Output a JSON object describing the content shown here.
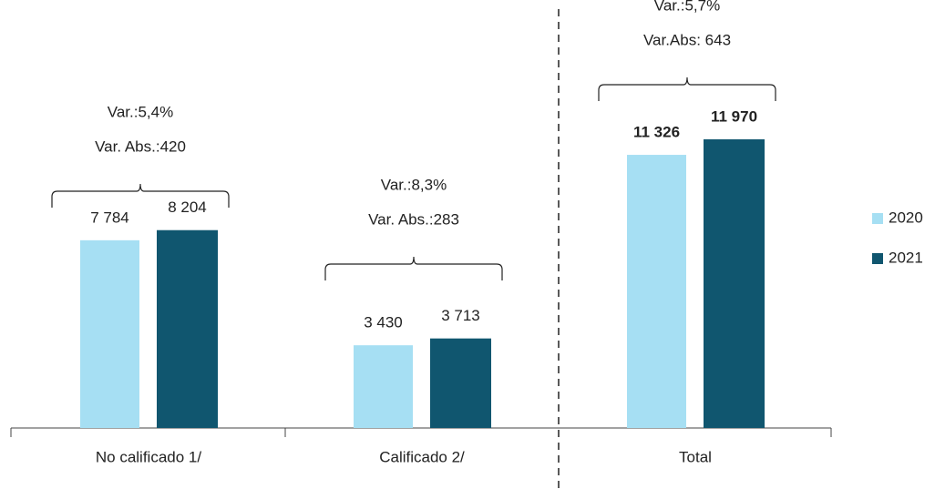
{
  "chart_data": {
    "type": "bar",
    "categories": [
      "No calificado 1/",
      "Calificado 2/",
      "Total"
    ],
    "series": [
      {
        "name": "2020",
        "color": "#a6dff3",
        "values": [
          7784,
          3430,
          11326
        ],
        "value_labels": [
          "7 784",
          "3 430",
          "11 326"
        ]
      },
      {
        "name": "2021",
        "color": "#10566f",
        "values": [
          8204,
          3713,
          11970
        ],
        "value_labels": [
          "8 204",
          "3 713",
          "11 970"
        ]
      }
    ],
    "annotations": [
      [
        "Var.:5,4%",
        "Var. Abs.:420"
      ],
      [
        "Var.:8,3%",
        "Var. Abs.:283"
      ],
      [
        "Var.:5,7%",
        "Var.Abs: 643"
      ]
    ]
  }
}
